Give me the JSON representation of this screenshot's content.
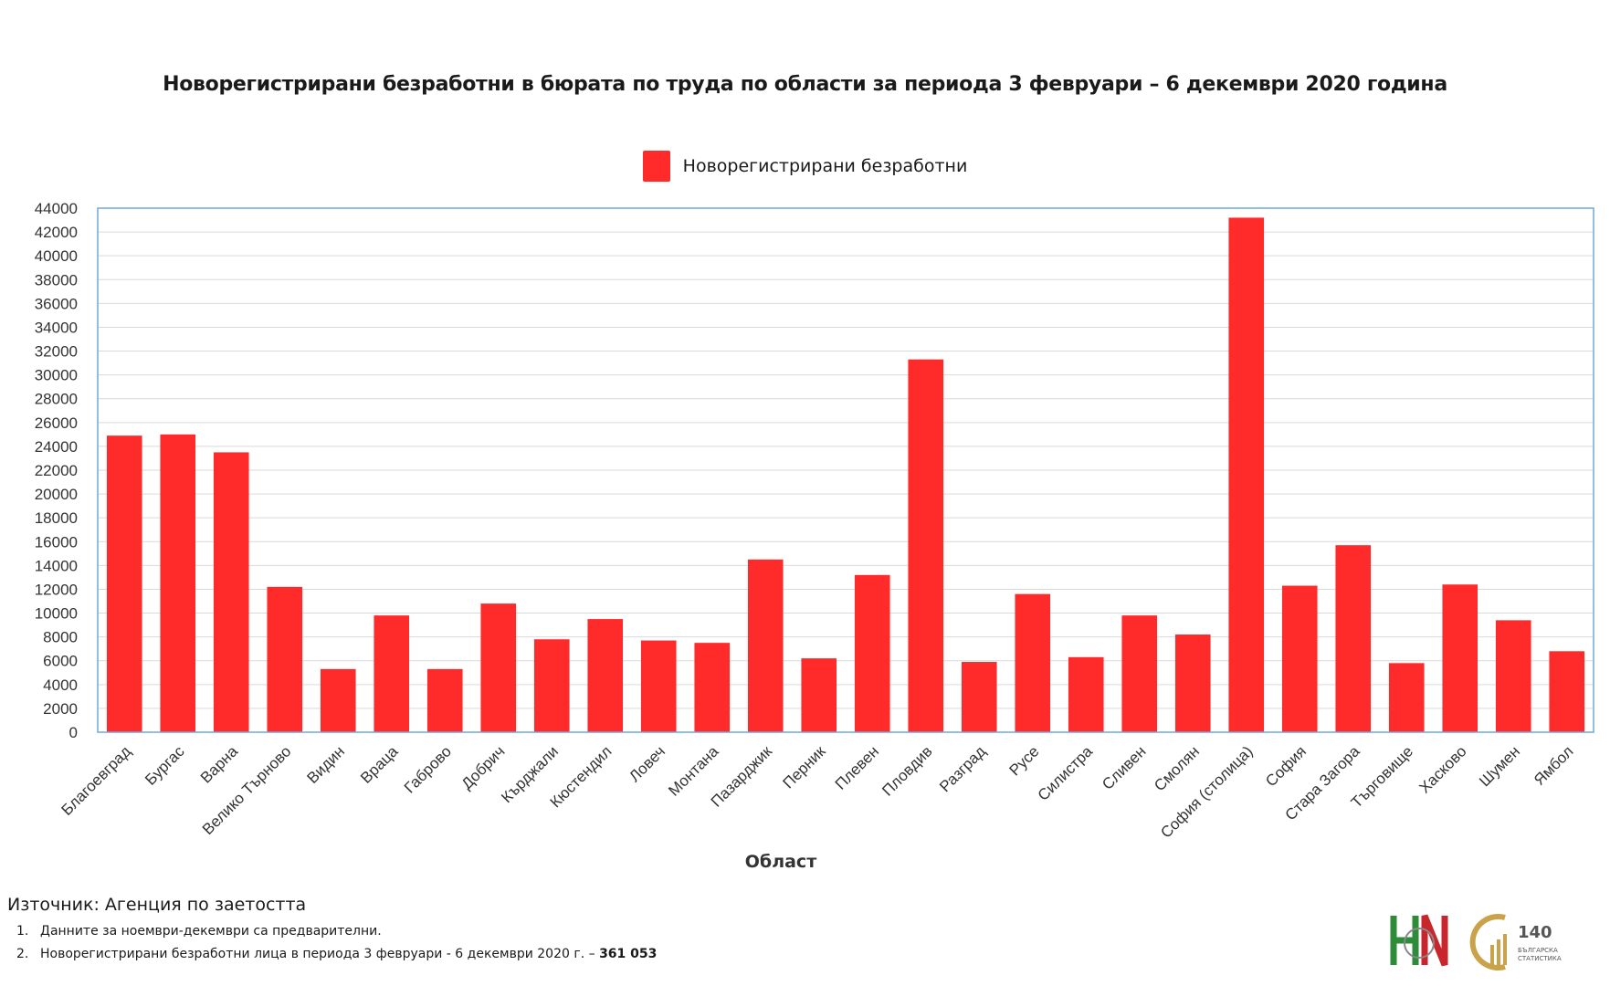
{
  "chart_data": {
    "type": "bar",
    "title": "Новорегистрирани безработни в бюрата по труда по области за периода 3 февруари – 6 декември 2020 година",
    "xlabel": "Област",
    "ylabel": "",
    "ylim": [
      0,
      44000
    ],
    "yticks": [
      "0",
      "2000",
      "4000",
      "6000",
      "8000",
      "10000",
      "12000",
      "14000",
      "16000",
      "18000",
      "20000",
      "22000",
      "24000",
      "26000",
      "28000",
      "30000",
      "32000",
      "34000",
      "36000",
      "38000",
      "40000",
      "42000",
      "44000"
    ],
    "grid": true,
    "legend_position": "top-center",
    "categories": [
      "Благоевград",
      "Бургас",
      "Варна",
      "Велико Търново",
      "Видин",
      "Враца",
      "Габрово",
      "Добрич",
      "Кърджали",
      "Кюстендил",
      "Ловеч",
      "Монтана",
      "Пазарджик",
      "Перник",
      "Плевен",
      "Пловдив",
      "Разград",
      "Русе",
      "Силистра",
      "Сливен",
      "Смолян",
      "София (столица)",
      "София",
      "Стара Загора",
      "Търговище",
      "Хасково",
      "Шумен",
      "Ямбол"
    ],
    "series": [
      {
        "name": "Новорегистрирани безработни",
        "color": "#ff2a2a",
        "values": [
          24900,
          25000,
          23500,
          12200,
          5300,
          9800,
          5300,
          10800,
          7800,
          9500,
          7700,
          7500,
          14500,
          6200,
          13200,
          31300,
          5900,
          11600,
          6300,
          9800,
          8200,
          43200,
          12300,
          15700,
          5800,
          12400,
          9400,
          6800
        ]
      }
    ]
  },
  "legend_label": "Новорегистрирани безработни",
  "source": "Източник: Агенция по заетостта",
  "notes": [
    {
      "num": "1.",
      "text": "Данните за ноември-декември  са предварителни.",
      "bold": ""
    },
    {
      "num": "2.",
      "text": "Новорегистрирани безработни лица в периода  3 февруари - 6 декември  2020 г. – ",
      "bold": "361 053"
    }
  ],
  "logos": {
    "nsi_icon": "nsi-logo-icon",
    "anniversary_icon": "anniversary-140-logo-icon",
    "anniversary_text": "140",
    "anniversary_subtext": [
      "БЪЛГАРСКА",
      "СТАТИСТИКА"
    ],
    "colors": {
      "green": "#2e8b3a",
      "red": "#c8262c",
      "gold": "#c9a24a"
    }
  }
}
